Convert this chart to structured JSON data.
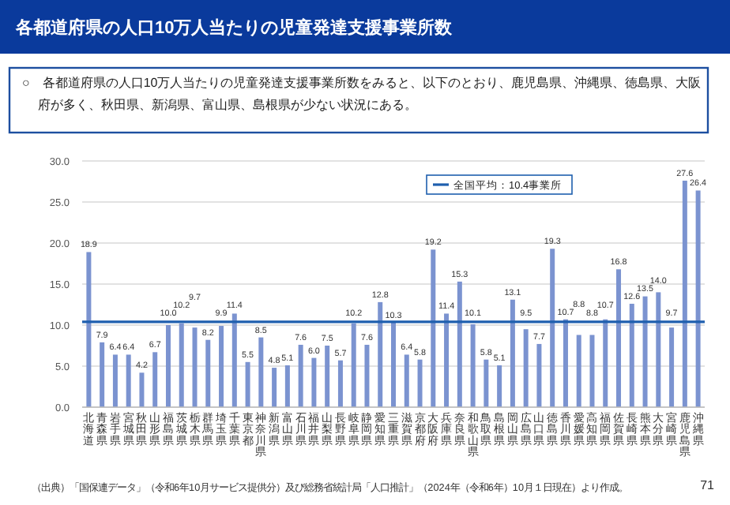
{
  "chart_data": {
    "type": "bar",
    "title": "各都道府県の人口10万人当たりの児童発達支援事業所数",
    "subtitle": "○　各都道府県の人口10万人当たりの児童発達支援事業所数をみると、以下のとおり、鹿児島県、沖縄県、徳島県、大阪府が多く、秋田県、新潟県、富山県、島根県が少ない状況にある。",
    "categories": [
      "北海道",
      "青森県",
      "岩手県",
      "宮城県",
      "秋田県",
      "山形県",
      "福島県",
      "茨城県",
      "栃木県",
      "群馬県",
      "埼玉県",
      "千葉県",
      "東京都",
      "神奈川県",
      "新潟県",
      "富山県",
      "石川県",
      "福井県",
      "山梨県",
      "長野県",
      "岐阜県",
      "静岡県",
      "愛知県",
      "三重県",
      "滋賀県",
      "京都府",
      "大阪府",
      "兵庫県",
      "奈良県",
      "和歌山県",
      "鳥取県",
      "島根県",
      "岡山県",
      "広島県",
      "山口県",
      "徳島県",
      "香川県",
      "愛媛県",
      "高知県",
      "福岡県",
      "佐賀県",
      "長崎県",
      "熊本県",
      "大分県",
      "宮崎県",
      "鹿児島県",
      "沖縄県"
    ],
    "values": [
      18.9,
      7.9,
      6.4,
      6.4,
      4.2,
      6.7,
      10.0,
      10.2,
      9.7,
      8.2,
      9.9,
      11.4,
      5.5,
      8.5,
      4.8,
      5.1,
      7.6,
      6.0,
      7.5,
      5.7,
      10.2,
      7.6,
      12.8,
      10.3,
      6.4,
      5.8,
      19.2,
      11.4,
      15.3,
      10.1,
      5.8,
      5.1,
      13.1,
      9.5,
      7.7,
      19.3,
      10.7,
      8.8,
      8.8,
      10.7,
      16.8,
      12.6,
      13.5,
      14.0,
      9.7,
      27.6,
      26.4
    ],
    "value_labels": [
      "18.9",
      "7.9",
      "6.4",
      "6.4",
      "4.2",
      "6.7",
      "10.0",
      "10.2",
      "9.7",
      "8.2",
      "9.9",
      "11.4",
      "5.5",
      "8.5",
      "4.8",
      "5.1",
      "7.6",
      "6.0",
      "7.5",
      "5.7",
      "10.2",
      "7.6",
      "12.8",
      "10.3",
      "6.4",
      "5.8",
      "19.2",
      "11.4",
      "15.3",
      "10.1",
      "5.8",
      "5.1",
      "13.1",
      "9.5",
      "7.7",
      "19.3",
      "10.7",
      "8.8",
      "8.8",
      "10.7",
      "16.8",
      "12.6",
      "13.5",
      "14.0",
      "9.7",
      "27.6",
      "26.4"
    ],
    "color": "#7b93d0",
    "ylim": [
      0,
      30
    ],
    "yticks": [
      {
        "value": 0,
        "label": "0.0"
      },
      {
        "value": 5,
        "label": "5.0"
      },
      {
        "value": 10,
        "label": "10.0"
      },
      {
        "value": 15,
        "label": "15.0"
      },
      {
        "value": 20,
        "label": "20.0"
      },
      {
        "value": 25,
        "label": "25.0"
      },
      {
        "value": 30,
        "label": "30.0"
      }
    ],
    "grid": "y",
    "ref_lines": [
      {
        "axis": "y",
        "value": 10.4,
        "label": "全国平均：10.4事業所",
        "color": "#1f5fae"
      }
    ],
    "annotations": [
      "（出典）「国保連データ」（令和6年10月サービス提供分）及び総務省統計局「人口推計」（2024年（令和6年）10月１日現在）より作成。",
      "71"
    ]
  }
}
